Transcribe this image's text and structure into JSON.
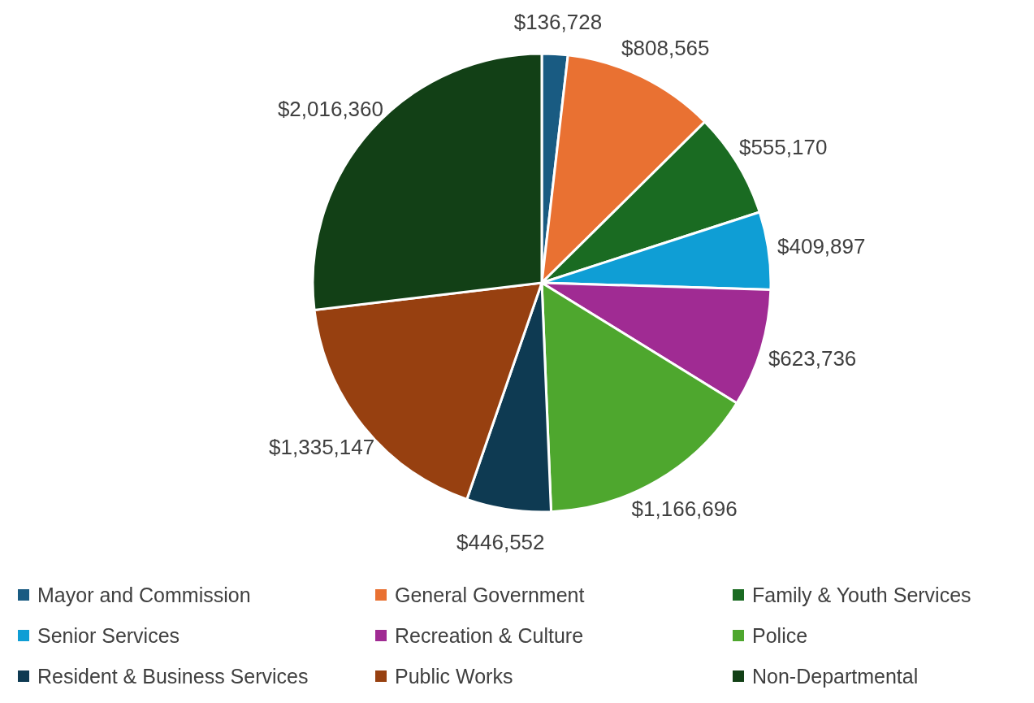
{
  "chart_data": {
    "type": "pie",
    "categories": [
      "Mayor and Commission",
      "General Government",
      "Family & Youth Services",
      "Senior Services",
      "Recreation & Culture",
      "Police",
      "Resident & Business Services",
      "Public Works",
      "Non-Departmental"
    ],
    "values": [
      136728,
      808565,
      555170,
      409897,
      623736,
      1166696,
      446552,
      1335147,
      2016360
    ],
    "colors": [
      "#195b82",
      "#e97132",
      "#1a6b22",
      "#0f9ed5",
      "#a02b93",
      "#4ea72e",
      "#0e3a52",
      "#974010",
      "#124016"
    ],
    "value_labels": [
      "$136,728",
      "$808,565",
      "$555,170",
      "$409,897",
      "$623,736",
      "$1,166,696",
      "$446,552",
      "$1,335,147",
      "$2,016,360"
    ],
    "legend": "bottom"
  }
}
